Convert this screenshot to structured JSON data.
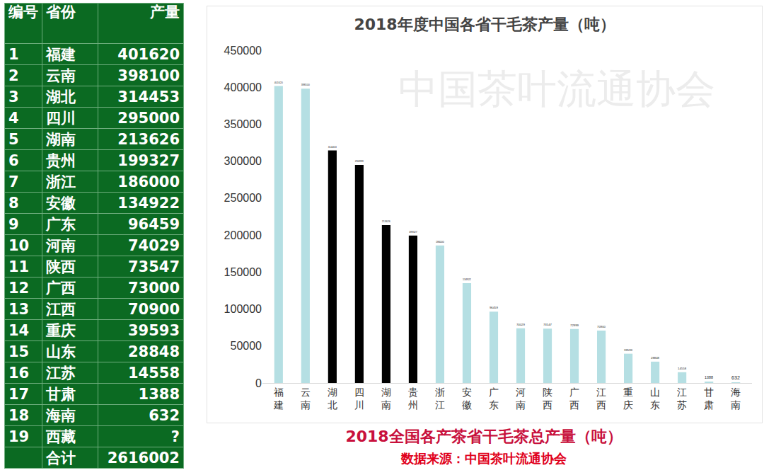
{
  "table": {
    "header": [
      "编号",
      "省份",
      "产量"
    ],
    "rows": [
      [
        1,
        "福建",
        401620
      ],
      [
        2,
        "云南",
        398100
      ],
      [
        3,
        "湖北",
        314453
      ],
      [
        4,
        "四川",
        295000
      ],
      [
        5,
        "湖南",
        213626
      ],
      [
        6,
        "贵州",
        199327
      ],
      [
        7,
        "浙江",
        186000
      ],
      [
        8,
        "安徽",
        134922
      ],
      [
        9,
        "广东",
        96459
      ],
      [
        10,
        "河南",
        74029
      ],
      [
        11,
        "陕西",
        73547
      ],
      [
        12,
        "广西",
        73000
      ],
      [
        13,
        "江西",
        70900
      ],
      [
        14,
        "重庆",
        39593
      ],
      [
        15,
        "山东",
        28848
      ],
      [
        16,
        "江苏",
        14558
      ],
      [
        17,
        "甘肃",
        1388
      ],
      [
        18,
        "海南",
        632
      ],
      [
        19,
        "西藏",
        "?"
      ]
    ],
    "total": {
      "label": "合计",
      "value": 2616002
    }
  },
  "chart_data": {
    "type": "bar",
    "title": "2018年度中国各省干毛茶产量（吨）",
    "categories": [
      "福建",
      "云南",
      "湖北",
      "四川",
      "湖南",
      "贵州",
      "浙江",
      "安徽",
      "广东",
      "河南",
      "陕西",
      "广西",
      "江西",
      "重庆",
      "山东",
      "江苏",
      "甘肃",
      "海南"
    ],
    "values": [
      401620,
      398100,
      314453,
      294999,
      213626,
      199327,
      186000,
      134922,
      96459,
      74029,
      73547,
      72999,
      70900,
      39593,
      28848,
      14558,
      1388,
      632
    ],
    "colors": [
      "#b5dfe3",
      "#b5dfe3",
      "#000000",
      "#000000",
      "#000000",
      "#000000",
      "#b5dfe3",
      "#b5dfe3",
      "#b5dfe3",
      "#b5dfe3",
      "#b5dfe3",
      "#b5dfe3",
      "#b5dfe3",
      "#b5dfe3",
      "#b5dfe3",
      "#b5dfe3",
      "#b5dfe3",
      "#b5dfe3"
    ],
    "ylim": [
      0,
      450000
    ],
    "yticks": [
      0,
      50000,
      100000,
      150000,
      200000,
      250000,
      300000,
      350000,
      400000,
      450000
    ],
    "grid": false,
    "data_labels": true,
    "caption": "2018全国各产茶省干毛茶总产量（吨）",
    "source": "数据来源：中国茶叶流通协会",
    "watermark": "中国茶叶流通协会"
  }
}
